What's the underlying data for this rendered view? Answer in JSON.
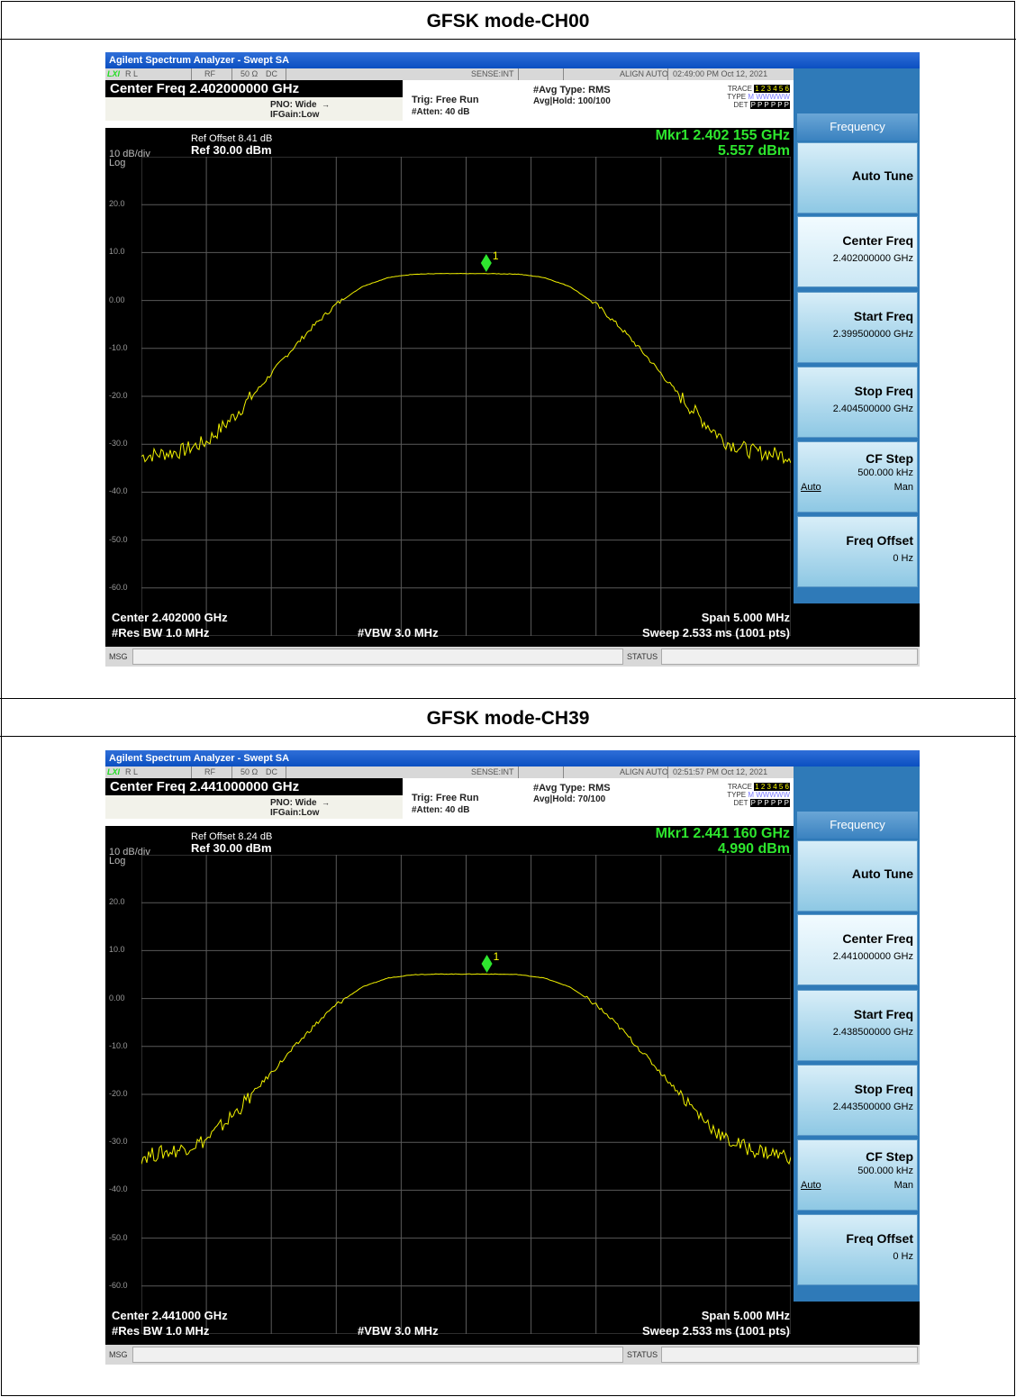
{
  "panels": [
    {
      "caption": "GFSK mode-CH00",
      "app_title": "Agilent Spectrum Analyzer - Swept SA",
      "status_row": {
        "rl": "R L",
        "rf": "RF",
        "imp": "50 Ω",
        "dc": "DC",
        "sense": "SENSE:INT",
        "align": "ALIGN AUTO",
        "datetime": "02:49:00 PM Oct 12, 2021"
      },
      "center_freq_label": "Center Freq 2.402000000 GHz",
      "pno": "PNO: Wide",
      "ifgain": "IFGain:Low",
      "trig": "Trig: Free Run",
      "atten": "#Atten: 40 dB",
      "avg_type": "#Avg Type: RMS",
      "avg_hold": "Avg|Hold: 100/100",
      "trace_line": {
        "trace": "TRACE",
        "type": "TYPE",
        "det": "DET",
        "trace_nums": "1 2 3 4 5 6",
        "type_vals": "M WWWWW",
        "det_vals": "P P P P P P"
      },
      "ref_offset": "Ref Offset 8.41 dB",
      "ref_level": "Ref 30.00 dBm",
      "scale": "10 dB/div",
      "log": "Log",
      "marker_freq": "Mkr1 2.402 155 GHz",
      "marker_amp": "5.557 dBm",
      "marker_label": "1",
      "center": "Center 2.402000 GHz",
      "span": "Span 5.000 MHz",
      "rbw": "#Res BW 1.0 MHz",
      "vbw": "#VBW 3.0 MHz",
      "sweep": "Sweep  2.533 ms (1001 pts)",
      "msg": "MSG",
      "status": "STATUS",
      "softkeys": {
        "header": "Frequency",
        "auto_tune": "Auto Tune",
        "center_freq": {
          "title": "Center Freq",
          "value": "2.402000000 GHz"
        },
        "start_freq": {
          "title": "Start Freq",
          "value": "2.399500000 GHz"
        },
        "stop_freq": {
          "title": "Stop Freq",
          "value": "2.404500000 GHz"
        },
        "cf_step": {
          "title": "CF Step",
          "value": "500.000 kHz",
          "auto": "Auto",
          "man": "Man"
        },
        "freq_offset": {
          "title": "Freq Offset",
          "value": "0 Hz"
        }
      },
      "y_ticks": [
        "20.0",
        "10.0",
        "0.00",
        "-10.0",
        "-20.0",
        "-30.0",
        "-40.0",
        "-50.0",
        "-60.0"
      ],
      "chart_data": {
        "type": "line",
        "x_unit": "MHz offset from center",
        "xlim": [
          -2.5,
          2.5
        ],
        "ylim": [
          -70,
          30
        ],
        "x": [
          -2.5,
          -2.2,
          -2.0,
          -1.8,
          -1.6,
          -1.4,
          -1.2,
          -1.0,
          -0.8,
          -0.6,
          -0.4,
          -0.2,
          0.0,
          0.2,
          0.4,
          0.6,
          0.8,
          1.0,
          1.2,
          1.4,
          1.6,
          1.8,
          2.0,
          2.2,
          2.5
        ],
        "y": [
          -32.5,
          -31.5,
          -29.5,
          -24.5,
          -18.5,
          -12.0,
          -6.0,
          -0.8,
          2.9,
          4.8,
          5.5,
          5.6,
          5.6,
          5.6,
          5.5,
          4.8,
          2.9,
          -0.8,
          -6.0,
          -12.0,
          -18.5,
          -24.5,
          -29.5,
          -31.5,
          -32.5
        ],
        "marker": {
          "x": 0.155,
          "y": 5.557
        }
      }
    },
    {
      "caption": "GFSK mode-CH39",
      "app_title": "Agilent Spectrum Analyzer - Swept SA",
      "status_row": {
        "rl": "R L",
        "rf": "RF",
        "imp": "50 Ω",
        "dc": "DC",
        "sense": "SENSE:INT",
        "align": "ALIGN AUTO",
        "datetime": "02:51:57 PM Oct 12, 2021"
      },
      "center_freq_label": "Center Freq 2.441000000 GHz",
      "pno": "PNO: Wide",
      "ifgain": "IFGain:Low",
      "trig": "Trig: Free Run",
      "atten": "#Atten: 40 dB",
      "avg_type": "#Avg Type: RMS",
      "avg_hold": "Avg|Hold: 70/100",
      "trace_line": {
        "trace": "TRACE",
        "type": "TYPE",
        "det": "DET",
        "trace_nums": "1 2 3 4 5 6",
        "type_vals": "M WWWWW",
        "det_vals": "P P P P P P"
      },
      "ref_offset": "Ref Offset 8.24 dB",
      "ref_level": "Ref 30.00 dBm",
      "scale": "10 dB/div",
      "log": "Log",
      "marker_freq": "Mkr1 2.441 160 GHz",
      "marker_amp": "4.990 dBm",
      "marker_label": "1",
      "center": "Center 2.441000 GHz",
      "span": "Span 5.000 MHz",
      "rbw": "#Res BW 1.0 MHz",
      "vbw": "#VBW 3.0 MHz",
      "sweep": "Sweep  2.533 ms (1001 pts)",
      "msg": "MSG",
      "status": "STATUS",
      "softkeys": {
        "header": "Frequency",
        "auto_tune": "Auto Tune",
        "center_freq": {
          "title": "Center Freq",
          "value": "2.441000000 GHz"
        },
        "start_freq": {
          "title": "Start Freq",
          "value": "2.438500000 GHz"
        },
        "stop_freq": {
          "title": "Stop Freq",
          "value": "2.443500000 GHz"
        },
        "cf_step": {
          "title": "CF Step",
          "value": "500.000 kHz",
          "auto": "Auto",
          "man": "Man"
        },
        "freq_offset": {
          "title": "Freq Offset",
          "value": "0 Hz"
        }
      },
      "y_ticks": [
        "20.0",
        "10.0",
        "0.00",
        "-10.0",
        "-20.0",
        "-30.0",
        "-40.0",
        "-50.0",
        "-60.0"
      ],
      "chart_data": {
        "type": "line",
        "x_unit": "MHz offset from center",
        "xlim": [
          -2.5,
          2.5
        ],
        "ylim": [
          -70,
          30
        ],
        "x": [
          -2.5,
          -2.2,
          -2.0,
          -1.8,
          -1.6,
          -1.4,
          -1.2,
          -1.0,
          -0.8,
          -0.6,
          -0.4,
          -0.2,
          0.0,
          0.2,
          0.4,
          0.6,
          0.8,
          1.0,
          1.2,
          1.4,
          1.6,
          1.8,
          2.0,
          2.2,
          2.5
        ],
        "y": [
          -33.0,
          -31.5,
          -29.5,
          -24.5,
          -18.5,
          -12.5,
          -6.5,
          -1.3,
          2.4,
          4.3,
          5.0,
          5.1,
          5.1,
          5.1,
          5.0,
          4.3,
          2.4,
          -1.3,
          -6.5,
          -12.5,
          -18.5,
          -24.5,
          -29.5,
          -31.5,
          -33.0
        ],
        "marker": {
          "x": 0.16,
          "y": 4.99
        }
      }
    }
  ]
}
